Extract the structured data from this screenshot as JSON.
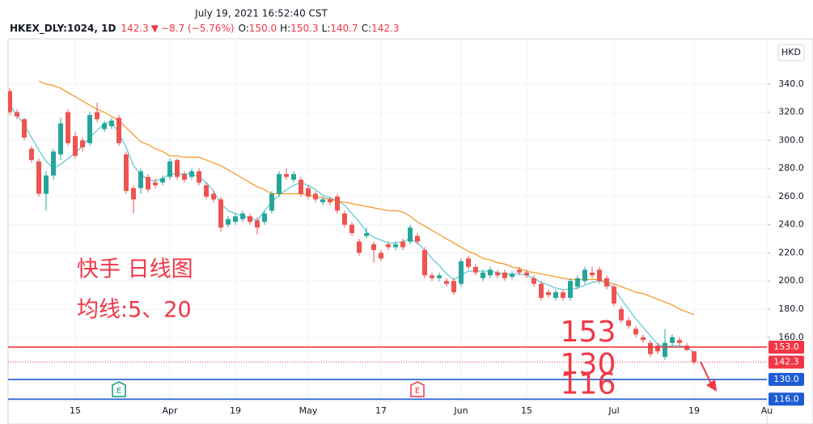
{
  "header": {
    "datetime": "July 19, 2021 16:52:40 CST",
    "symbol": "HKEX_DLY:1024, 1D",
    "last": "142.3",
    "arrow": "▼",
    "change": "−8.7 (−5.76%)",
    "open_label": "O:",
    "open": "150.0",
    "high_label": "H:",
    "high": "150.3",
    "low_label": "L:",
    "low": "140.7",
    "close_label": "C:",
    "close": "142.3"
  },
  "currency": "HKD",
  "chart_data": {
    "type": "candlestick",
    "categories": [
      null,
      null,
      null,
      null,
      null,
      null,
      null,
      null,
      null,
      "15",
      null,
      null,
      null,
      null,
      null,
      null,
      null,
      null,
      null,
      null,
      null,
      null,
      "Apr",
      null,
      null,
      null,
      null,
      null,
      null,
      null,
      null,
      "19",
      null,
      null,
      null,
      null,
      null,
      null,
      null,
      null,
      null,
      "May",
      null,
      null,
      null,
      null,
      null,
      null,
      null,
      null,
      null,
      "17",
      null,
      null,
      null,
      null,
      null,
      null,
      null,
      null,
      null,
      null,
      "Jun",
      null,
      null,
      null,
      null,
      null,
      null,
      null,
      null,
      "15",
      null,
      null,
      null,
      null,
      null,
      null,
      null,
      null,
      null,
      null,
      null,
      "Jul",
      null,
      null,
      null,
      null,
      null,
      null,
      null,
      null,
      null,
      null,
      "19",
      null,
      null,
      null,
      null,
      null,
      null,
      null,
      null,
      null,
      "Au"
    ],
    "ohlc": [
      [
        335,
        337,
        318,
        320
      ],
      [
        320,
        322,
        315,
        317
      ],
      [
        315,
        316,
        300,
        302
      ],
      [
        294,
        296,
        284,
        286
      ],
      [
        285,
        287,
        260,
        262
      ],
      [
        262,
        278,
        250,
        275
      ],
      [
        275,
        294,
        272,
        292
      ],
      [
        290,
        316,
        286,
        312
      ],
      [
        320,
        322,
        296,
        298
      ],
      [
        303,
        306,
        287,
        289
      ],
      [
        300,
        302,
        292,
        295
      ],
      [
        298,
        320,
        296,
        318
      ],
      [
        320,
        327,
        313,
        315
      ],
      [
        308,
        314,
        306,
        312
      ],
      [
        310,
        316,
        308,
        314
      ],
      [
        316,
        318,
        296,
        298
      ],
      [
        290,
        292,
        262,
        264
      ],
      [
        266,
        268,
        248,
        258
      ],
      [
        266,
        280,
        262,
        278
      ],
      [
        274,
        276,
        263,
        265
      ],
      [
        270,
        273,
        266,
        268
      ],
      [
        270,
        275,
        268,
        273
      ],
      [
        274,
        287,
        272,
        285
      ],
      [
        286,
        287,
        272,
        274
      ],
      [
        276,
        278,
        270,
        272
      ],
      [
        274,
        280,
        272,
        278
      ],
      [
        278,
        280,
        268,
        270
      ],
      [
        268,
        270,
        258,
        260
      ],
      [
        262,
        264,
        256,
        258
      ],
      [
        258,
        260,
        235,
        238
      ],
      [
        240,
        246,
        238,
        244
      ],
      [
        242,
        248,
        240,
        246
      ],
      [
        244,
        250,
        242,
        248
      ],
      [
        246,
        248,
        240,
        242
      ],
      [
        243,
        245,
        233,
        238
      ],
      [
        242,
        250,
        240,
        248
      ],
      [
        250,
        264,
        248,
        262
      ],
      [
        262,
        278,
        260,
        276
      ],
      [
        276,
        280,
        272,
        274
      ],
      [
        272,
        278,
        270,
        276
      ],
      [
        272,
        274,
        260,
        262
      ],
      [
        266,
        268,
        258,
        260
      ],
      [
        262,
        264,
        256,
        258
      ],
      [
        256,
        260,
        254,
        258
      ],
      [
        258,
        260,
        254,
        256
      ],
      [
        260,
        262,
        248,
        250
      ],
      [
        248,
        250,
        238,
        240
      ],
      [
        240,
        242,
        232,
        234
      ],
      [
        228,
        230,
        218,
        220
      ],
      [
        232,
        238,
        230,
        234
      ],
      [
        226,
        228,
        213,
        222
      ],
      [
        220,
        222,
        214,
        216
      ],
      [
        226,
        228,
        222,
        224
      ],
      [
        224,
        228,
        222,
        226
      ],
      [
        228,
        230,
        222,
        224
      ],
      [
        228,
        240,
        226,
        238
      ],
      [
        232,
        234,
        226,
        228
      ],
      [
        222,
        224,
        202,
        204
      ],
      [
        204,
        206,
        200,
        202
      ],
      [
        202,
        206,
        200,
        204
      ],
      [
        200,
        202,
        196,
        198
      ],
      [
        200,
        202,
        190,
        192
      ],
      [
        198,
        216,
        196,
        214
      ],
      [
        216,
        218,
        208,
        210
      ],
      [
        210,
        212,
        204,
        206
      ],
      [
        202,
        208,
        200,
        206
      ],
      [
        204,
        210,
        202,
        208
      ],
      [
        206,
        208,
        202,
        204
      ],
      [
        206,
        208,
        200,
        202
      ],
      [
        203,
        207,
        201,
        205
      ],
      [
        208,
        210,
        204,
        206
      ],
      [
        206,
        208,
        202,
        204
      ],
      [
        202,
        204,
        196,
        198
      ],
      [
        198,
        200,
        186,
        188
      ],
      [
        192,
        194,
        188,
        190
      ],
      [
        188,
        194,
        186,
        192
      ],
      [
        192,
        194,
        186,
        188
      ],
      [
        188,
        202,
        186,
        200
      ],
      [
        196,
        204,
        194,
        202
      ],
      [
        200,
        210,
        198,
        208
      ],
      [
        206,
        210,
        202,
        204
      ],
      [
        208,
        210,
        198,
        200
      ],
      [
        202,
        204,
        194,
        196
      ],
      [
        196,
        198,
        182,
        184
      ],
      [
        180,
        182,
        170,
        172
      ],
      [
        172,
        174,
        166,
        168
      ],
      [
        166,
        168,
        160,
        162
      ],
      [
        160,
        162,
        156,
        158
      ],
      [
        156,
        158,
        146,
        148
      ],
      [
        154,
        156,
        148,
        150
      ],
      [
        146,
        166,
        144,
        156
      ],
      [
        156,
        162,
        154,
        160
      ],
      [
        158,
        160,
        154,
        156
      ],
      [
        154,
        156,
        150,
        151
      ],
      [
        150,
        150.3,
        140.7,
        142.3
      ],
      null,
      null,
      null,
      null,
      null,
      null,
      null,
      null,
      null,
      null
    ],
    "up_color": "#26a69a",
    "down_color": "#ef5350",
    "series": [
      {
        "color": "#56c7d6",
        "values": [
          325,
          318,
          311,
          302,
          293,
          285,
          280,
          283,
          287,
          291,
          296,
          302,
          307,
          312,
          313,
          305,
          295,
          282,
          276,
          272,
          271,
          273,
          276,
          276,
          276,
          276,
          274,
          270,
          264,
          255,
          250,
          248,
          246,
          245,
          243,
          250,
          256,
          261,
          265,
          268,
          270,
          268,
          265,
          261,
          259,
          257,
          254,
          248,
          242,
          235,
          231,
          229,
          227,
          227,
          228,
          230,
          227,
          222,
          216,
          211,
          205,
          201,
          204,
          207,
          207,
          207,
          207,
          206,
          205,
          205,
          205,
          204,
          202,
          199,
          197,
          195,
          194,
          194,
          195,
          197,
          199,
          200,
          199,
          195,
          187,
          180,
          173,
          167,
          161,
          155,
          153,
          154,
          154,
          153,
          149,
          null,
          null,
          null,
          null,
          null,
          null,
          null,
          null,
          null,
          null
        ]
      },
      {
        "color": "#f7931e",
        "values": [
          null,
          null,
          null,
          null,
          342,
          340,
          339,
          337,
          334,
          331,
          328,
          325,
          322,
          320,
          317,
          314,
          309,
          304,
          299,
          297,
          294,
          292,
          289,
          289,
          288,
          288,
          288,
          286,
          284,
          282,
          279,
          276,
          273,
          270,
          267,
          265,
          262,
          262,
          262,
          262,
          262,
          261,
          260,
          259,
          258,
          257,
          256,
          255,
          254,
          253,
          252,
          251,
          250,
          250,
          249,
          246,
          242,
          239,
          236,
          233,
          230,
          227,
          224,
          221,
          219,
          216,
          215,
          213,
          212,
          210,
          209,
          207,
          206,
          205,
          204,
          203,
          202,
          201,
          201,
          201,
          201,
          201,
          199,
          198,
          196,
          194,
          192,
          191,
          189,
          187,
          185,
          183,
          180,
          178,
          176,
          null,
          null,
          null,
          null,
          null,
          null,
          null,
          null,
          null,
          null
        ]
      }
    ],
    "ylim": [
      115,
      371
    ],
    "yticks": [
      {
        "value": 160,
        "label": "160.0"
      },
      {
        "value": 180,
        "label": "180.0"
      },
      {
        "value": 200,
        "label": "200.0"
      },
      {
        "value": 220,
        "label": "220.0"
      },
      {
        "value": 240,
        "label": "240.0"
      },
      {
        "value": 260,
        "label": "260.0"
      },
      {
        "value": 280,
        "label": "280.0"
      },
      {
        "value": 300,
        "label": "300.0"
      },
      {
        "value": 320,
        "label": "320.0"
      },
      {
        "value": 340,
        "label": "340.0"
      }
    ],
    "grid": true,
    "hlines": [
      {
        "value": 153,
        "label": "153.0",
        "color": "#f23645",
        "style": "solid"
      },
      {
        "value": 142.3,
        "label": "142.3",
        "color": "#f23645",
        "style": "dotted"
      },
      {
        "value": 130,
        "label": "130.0",
        "color": "#1e5bd6",
        "style": "solid"
      },
      {
        "value": 116,
        "label": "116.0",
        "color": "#1e5bd6",
        "style": "solid"
      }
    ],
    "level_notes": [
      {
        "value": 153,
        "label": "153"
      },
      {
        "value": 130,
        "label": "130"
      },
      {
        "value": 116,
        "label": "116"
      }
    ],
    "notes": [
      "快手 日线图",
      "均线:5、20"
    ],
    "events": [
      {
        "label": "E",
        "color": "#089981",
        "index": 15
      },
      {
        "label": "E",
        "color": "#f23645",
        "index": 56
      }
    ]
  }
}
